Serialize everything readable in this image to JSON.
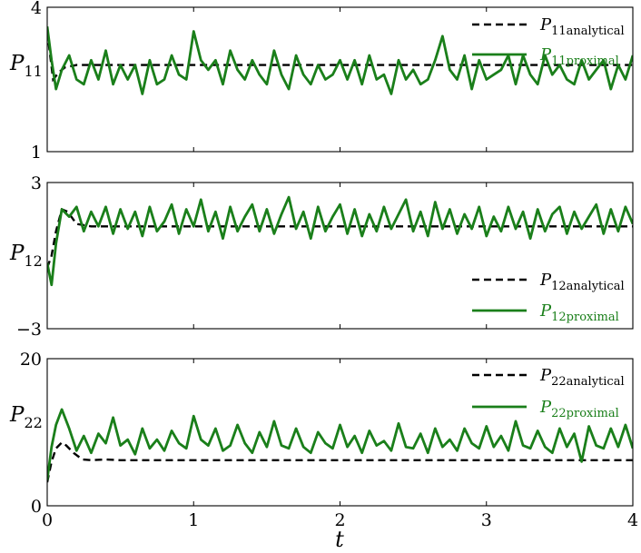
{
  "chart_data": [
    {
      "type": "line",
      "xlabel": "t",
      "xlim": [
        0,
        4
      ],
      "xticks": [
        0,
        1,
        2,
        3,
        4
      ],
      "ylabel": "P",
      "ylabel_sub": "11",
      "ylim": [
        1,
        4
      ],
      "yticks": [
        1,
        4
      ],
      "legend_position": "top-right",
      "series": [
        {
          "name": "P",
          "name_sub": "11analytical",
          "color": "#000000",
          "style": "dashed",
          "x": [
            0,
            0.04,
            0.08,
            0.12,
            0.2,
            0.3,
            0.5,
            1,
            2,
            3,
            4
          ],
          "y": [
            3.5,
            2.5,
            2.65,
            2.75,
            2.8,
            2.8,
            2.8,
            2.8,
            2.8,
            2.8,
            2.8
          ]
        },
        {
          "name": "P",
          "name_sub": "11proximal",
          "color": "#1a7f1a",
          "style": "solid",
          "x": [
            0,
            0.03,
            0.06,
            0.1,
            0.15,
            0.2,
            0.25,
            0.3,
            0.35,
            0.4,
            0.45,
            0.5,
            0.55,
            0.6,
            0.65,
            0.7,
            0.75,
            0.8,
            0.85,
            0.9,
            0.95,
            1.0,
            1.05,
            1.1,
            1.15,
            1.2,
            1.25,
            1.3,
            1.35,
            1.4,
            1.45,
            1.5,
            1.55,
            1.6,
            1.65,
            1.7,
            1.75,
            1.8,
            1.85,
            1.9,
            1.95,
            2.0,
            2.05,
            2.1,
            2.15,
            2.2,
            2.25,
            2.3,
            2.35,
            2.4,
            2.45,
            2.5,
            2.55,
            2.6,
            2.65,
            2.7,
            2.75,
            2.8,
            2.85,
            2.9,
            2.95,
            3.0,
            3.05,
            3.1,
            3.15,
            3.2,
            3.25,
            3.3,
            3.35,
            3.4,
            3.45,
            3.5,
            3.55,
            3.6,
            3.65,
            3.7,
            3.75,
            3.8,
            3.85,
            3.9,
            3.95,
            4.0
          ],
          "y": [
            3.6,
            2.9,
            2.3,
            2.7,
            3.0,
            2.5,
            2.4,
            2.9,
            2.5,
            3.1,
            2.4,
            2.8,
            2.5,
            2.8,
            2.2,
            2.9,
            2.4,
            2.5,
            3.0,
            2.6,
            2.5,
            3.5,
            2.9,
            2.7,
            2.9,
            2.4,
            3.1,
            2.7,
            2.5,
            2.9,
            2.6,
            2.4,
            3.1,
            2.6,
            2.3,
            3.0,
            2.6,
            2.4,
            2.8,
            2.5,
            2.6,
            2.9,
            2.5,
            2.9,
            2.4,
            3.0,
            2.5,
            2.6,
            2.2,
            2.9,
            2.5,
            2.7,
            2.4,
            2.5,
            2.9,
            3.4,
            2.7,
            2.5,
            3.0,
            2.3,
            2.9,
            2.5,
            2.6,
            2.7,
            3.0,
            2.4,
            3.0,
            2.6,
            2.4,
            3.0,
            2.6,
            2.8,
            2.5,
            2.4,
            2.9,
            2.5,
            2.7,
            2.9,
            2.3,
            2.8,
            2.5,
            3.0
          ]
        }
      ]
    },
    {
      "type": "line",
      "xlabel": "t",
      "xlim": [
        0,
        4
      ],
      "xticks": [
        0,
        1,
        2,
        3,
        4
      ],
      "ylabel": "P",
      "ylabel_sub": "12",
      "ylim": [
        -3,
        3
      ],
      "yticks": [
        -3,
        3
      ],
      "ytick_labels": [
        "−3",
        "3"
      ],
      "legend_position": "bottom-right",
      "series": [
        {
          "name": "P",
          "name_sub": "12analytical",
          "color": "#000000",
          "style": "dashed",
          "x": [
            0,
            0.03,
            0.06,
            0.1,
            0.14,
            0.2,
            0.3,
            0.5,
            1,
            2,
            3,
            4
          ],
          "y": [
            -0.5,
            0.0,
            1.0,
            1.9,
            1.8,
            1.3,
            1.2,
            1.2,
            1.2,
            1.2,
            1.2,
            1.2
          ]
        },
        {
          "name": "P",
          "name_sub": "12proximal",
          "color": "#1a7f1a",
          "style": "solid",
          "x": [
            0,
            0.03,
            0.06,
            0.1,
            0.15,
            0.2,
            0.25,
            0.3,
            0.35,
            0.4,
            0.45,
            0.5,
            0.55,
            0.6,
            0.65,
            0.7,
            0.75,
            0.8,
            0.85,
            0.9,
            0.95,
            1.0,
            1.05,
            1.1,
            1.15,
            1.2,
            1.25,
            1.3,
            1.35,
            1.4,
            1.45,
            1.5,
            1.55,
            1.6,
            1.65,
            1.7,
            1.75,
            1.8,
            1.85,
            1.9,
            1.95,
            2.0,
            2.05,
            2.1,
            2.15,
            2.2,
            2.25,
            2.3,
            2.35,
            2.4,
            2.45,
            2.5,
            2.55,
            2.6,
            2.65,
            2.7,
            2.75,
            2.8,
            2.85,
            2.9,
            2.95,
            3.0,
            3.05,
            3.1,
            3.15,
            3.2,
            3.25,
            3.3,
            3.35,
            3.4,
            3.45,
            3.5,
            3.55,
            3.6,
            3.65,
            3.7,
            3.75,
            3.8,
            3.85,
            3.9,
            3.95,
            4.0
          ],
          "y": [
            -0.3,
            -1.2,
            0.5,
            1.9,
            1.6,
            2.0,
            1.0,
            1.8,
            1.2,
            2.0,
            0.9,
            1.9,
            1.1,
            1.8,
            0.8,
            2.0,
            1.0,
            1.4,
            2.1,
            0.9,
            1.9,
            1.2,
            2.3,
            1.0,
            1.8,
            0.7,
            2.0,
            1.0,
            1.6,
            2.1,
            1.0,
            1.9,
            0.9,
            1.7,
            2.4,
            1.1,
            1.8,
            0.7,
            2.0,
            1.0,
            1.6,
            2.1,
            0.9,
            1.9,
            0.8,
            1.7,
            1.0,
            2.0,
            1.1,
            1.7,
            2.3,
            1.0,
            1.8,
            0.8,
            2.2,
            1.1,
            1.9,
            0.9,
            1.7,
            1.1,
            2.0,
            0.8,
            1.6,
            1.0,
            2.0,
            1.1,
            1.8,
            0.7,
            1.9,
            1.0,
            1.7,
            2.0,
            0.9,
            1.8,
            1.1,
            1.6,
            2.1,
            0.9,
            1.9,
            1.0,
            2.0,
            1.3
          ]
        }
      ]
    },
    {
      "type": "line",
      "xlabel": "t",
      "xlim": [
        0,
        4
      ],
      "xticks": [
        0,
        1,
        2,
        3,
        4
      ],
      "xtick_labels": [
        "0",
        "1",
        "2",
        "3",
        "4"
      ],
      "ylabel": "P",
      "ylabel_sub": "22",
      "ylim": [
        0,
        20
      ],
      "yticks": [
        0,
        20
      ],
      "legend_position": "top-right",
      "series": [
        {
          "name": "P",
          "name_sub": "22analytical",
          "color": "#000000",
          "style": "dashed",
          "x": [
            0,
            0.03,
            0.06,
            0.1,
            0.13,
            0.18,
            0.24,
            0.3,
            0.4,
            0.5,
            1,
            2,
            3,
            4
          ],
          "y": [
            3.2,
            6.0,
            7.8,
            8.6,
            8.2,
            7.2,
            6.3,
            6.2,
            6.3,
            6.2,
            6.2,
            6.2,
            6.2,
            6.2
          ]
        },
        {
          "name": "P",
          "name_sub": "22proximal",
          "color": "#1a7f1a",
          "style": "solid",
          "x": [
            0,
            0.03,
            0.06,
            0.1,
            0.15,
            0.2,
            0.25,
            0.3,
            0.35,
            0.4,
            0.45,
            0.5,
            0.55,
            0.6,
            0.65,
            0.7,
            0.75,
            0.8,
            0.85,
            0.9,
            0.95,
            1.0,
            1.05,
            1.1,
            1.15,
            1.2,
            1.25,
            1.3,
            1.35,
            1.4,
            1.45,
            1.5,
            1.55,
            1.6,
            1.65,
            1.7,
            1.75,
            1.8,
            1.85,
            1.9,
            1.95,
            2.0,
            2.05,
            2.1,
            2.15,
            2.2,
            2.25,
            2.3,
            2.35,
            2.4,
            2.45,
            2.5,
            2.55,
            2.6,
            2.65,
            2.7,
            2.75,
            2.8,
            2.85,
            2.9,
            2.95,
            3.0,
            3.05,
            3.1,
            3.15,
            3.2,
            3.25,
            3.3,
            3.35,
            3.4,
            3.45,
            3.5,
            3.55,
            3.6,
            3.65,
            3.7,
            3.75,
            3.8,
            3.85,
            3.9,
            3.95,
            4.0
          ],
          "y": [
            3.5,
            8.0,
            11.0,
            13.1,
            10.5,
            7.5,
            9.5,
            7.2,
            9.8,
            8.5,
            12.0,
            8.2,
            9.0,
            7.0,
            10.5,
            7.8,
            9.0,
            7.5,
            10.2,
            8.5,
            7.8,
            12.2,
            9.0,
            8.2,
            10.5,
            7.5,
            8.2,
            11.0,
            8.5,
            7.2,
            10.0,
            8.0,
            11.5,
            8.2,
            7.8,
            10.5,
            8.0,
            7.2,
            10.0,
            8.5,
            7.8,
            11.0,
            8.0,
            9.5,
            7.2,
            10.2,
            8.2,
            8.8,
            7.5,
            11.2,
            8.0,
            7.8,
            9.8,
            7.2,
            10.5,
            8.0,
            9.0,
            7.5,
            10.5,
            8.5,
            7.8,
            10.8,
            8.0,
            9.5,
            7.5,
            11.5,
            8.2,
            7.8,
            10.2,
            8.0,
            7.2,
            10.5,
            8.0,
            9.8,
            6.0,
            10.8,
            8.2,
            7.8,
            10.5,
            8.0,
            11.0,
            7.8
          ]
        }
      ]
    }
  ]
}
